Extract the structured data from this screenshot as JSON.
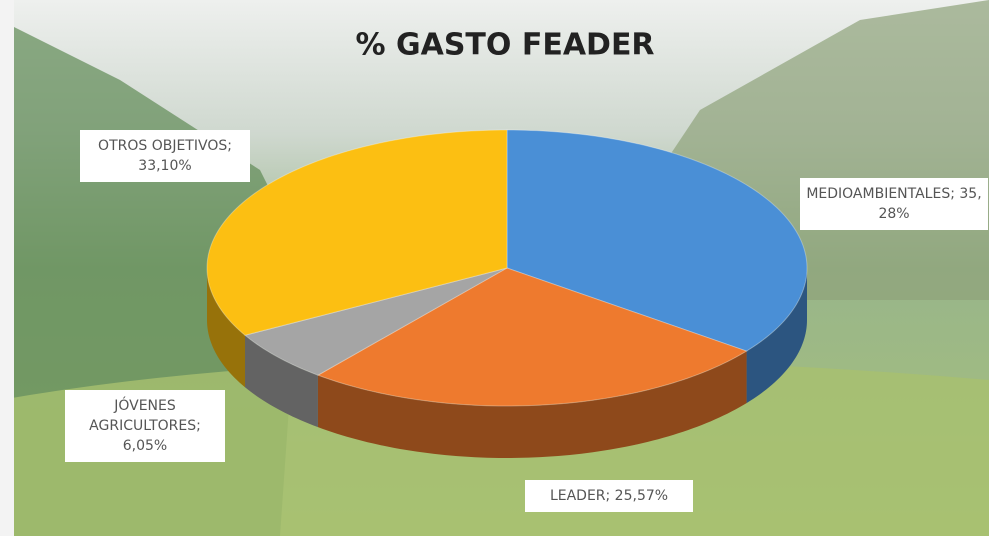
{
  "chart_data": {
    "type": "pie",
    "title": "% GASTO FEADER",
    "values": [
      35.28,
      25.57,
      6.05,
      33.1
    ],
    "value_labels": [
      "MEDIOAMBIENTALES; 35,28%",
      "LEADER; 25,57%",
      "JÓVENES AGRICULTORES; 6,05%",
      "OTROS OBJETIVOS; 33,10%"
    ],
    "colors": [
      "#4a8fd6",
      "#ee7a2e",
      "#a5a5a5",
      "#fcbf12"
    ]
  }
}
